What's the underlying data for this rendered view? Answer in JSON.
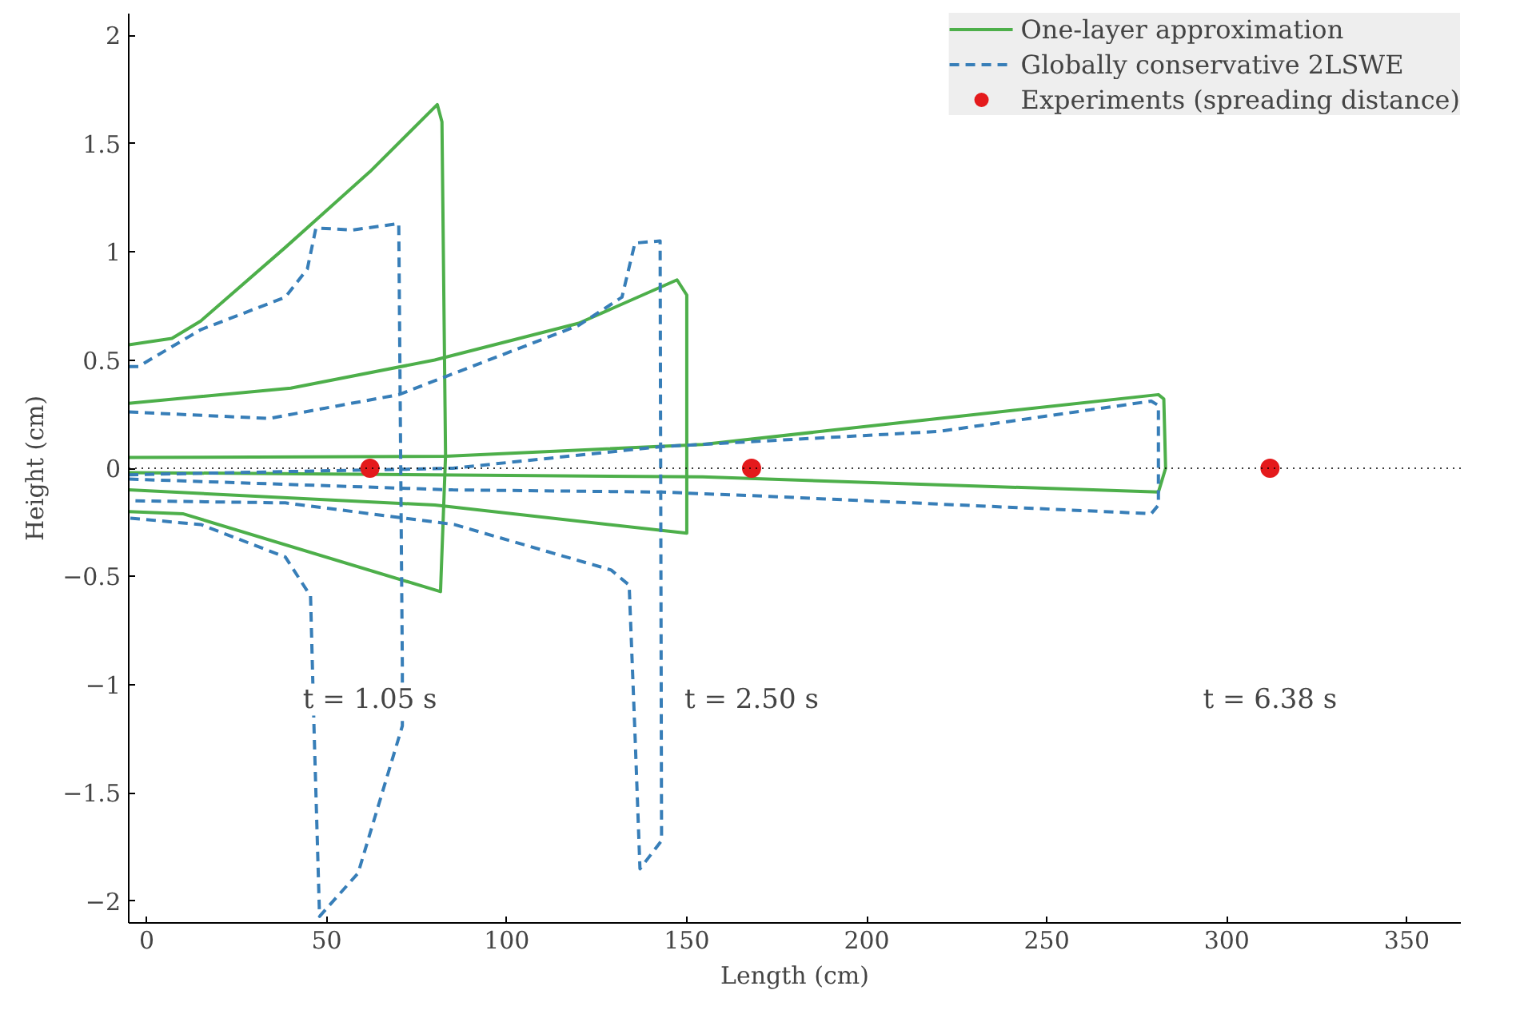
{
  "chart_data": {
    "type": "line",
    "xlabel": "Length (cm)",
    "ylabel": "Height (cm)",
    "xlim": [
      -5,
      365
    ],
    "ylim": [
      -2.1,
      2.1
    ],
    "xticks": [
      0,
      50,
      100,
      150,
      200,
      250,
      300,
      350
    ],
    "yticks": [
      {
        "value": -2,
        "label": "−2"
      },
      {
        "value": -1.5,
        "label": "−1.5"
      },
      {
        "value": -1,
        "label": "−1"
      },
      {
        "value": -0.5,
        "label": "−0.5"
      },
      0,
      0.5,
      1,
      1.5,
      2
    ],
    "grid": false,
    "legend": "top right",
    "series": [
      {
        "name": "One-layer approximation",
        "color": "#4daf4a",
        "line_style": "solid",
        "marker": "none",
        "x": [
          -5,
          7,
          15,
          38.5,
          62,
          80.7,
          82,
          83,
          81.6,
          10,
          -5
        ],
        "values": [
          0.57,
          0.6,
          0.68,
          1.02,
          1.37,
          1.68,
          1.6,
          0.06,
          -0.57,
          -0.21,
          -0.2
        ]
      },
      {
        "color": "#4daf4a",
        "line_style": "solid",
        "marker": "none",
        "x": [
          -5,
          40,
          80,
          120,
          147.3,
          150,
          150,
          80,
          -5
        ],
        "values": [
          0.3,
          0.37,
          0.5,
          0.67,
          0.87,
          0.8,
          -0.3,
          -0.17,
          -0.1
        ]
      },
      {
        "color": "#4daf4a",
        "line_style": "solid",
        "marker": "none",
        "x": [
          -5,
          83,
          154.4,
          220,
          281,
          282.5,
          283,
          281,
          154.4,
          -5
        ],
        "values": [
          0.05,
          0.055,
          0.11,
          0.23,
          0.34,
          0.32,
          0,
          -0.11,
          -0.04,
          -0.02
        ]
      },
      {
        "name": "Globally conservative 2LSWE",
        "color": "#377eb8",
        "line_style": "dashed",
        "marker": "none",
        "x": [
          -5,
          -2.3,
          15,
          38.5,
          44.6,
          47,
          57,
          70,
          71,
          71,
          58.7,
          48,
          46.5,
          45.5,
          38.5,
          15,
          -5
        ],
        "values": [
          0.47,
          0.47,
          0.64,
          0.79,
          0.92,
          1.11,
          1.1,
          1.13,
          -0.92,
          -1.19,
          -1.87,
          -2.07,
          -1.22,
          -0.59,
          -0.41,
          -0.26,
          -0.23
        ]
      },
      {
        "color": "#377eb8",
        "line_style": "dashed",
        "marker": "none",
        "x": [
          -5,
          34,
          70,
          120,
          132,
          135.6,
          142.6,
          143,
          137,
          135.6,
          134,
          129,
          85.4,
          38.5,
          -5
        ],
        "values": [
          0.26,
          0.23,
          0.34,
          0.66,
          0.79,
          1.04,
          1.05,
          -1.72,
          -1.85,
          -1.22,
          -0.54,
          -0.47,
          -0.26,
          -0.16,
          -0.15
        ]
      },
      {
        "color": "#377eb8",
        "line_style": "dashed",
        "marker": "none",
        "x": [
          -5,
          85,
          143,
          220,
          279,
          281,
          281,
          279,
          173,
          143,
          85,
          -5
        ],
        "values": [
          -0.03,
          0.0,
          0.1,
          0.17,
          0.31,
          0.29,
          -0.17,
          -0.21,
          -0.13,
          -0.11,
          -0.1,
          -0.05
        ]
      },
      {
        "name": "Experiments (spreading distance)",
        "type": "scatter",
        "color": "#e41a1c",
        "marker": "circle",
        "x": [
          62,
          168,
          312
        ],
        "values": [
          0,
          0,
          0
        ]
      }
    ],
    "ref_lines": [
      {
        "axis": "y",
        "value": 0,
        "color": "#000000",
        "line_style": "dotted"
      }
    ],
    "annotations": [
      "t = 1.05 s",
      "t = 2.50 s",
      "t = 6.38 s"
    ]
  }
}
